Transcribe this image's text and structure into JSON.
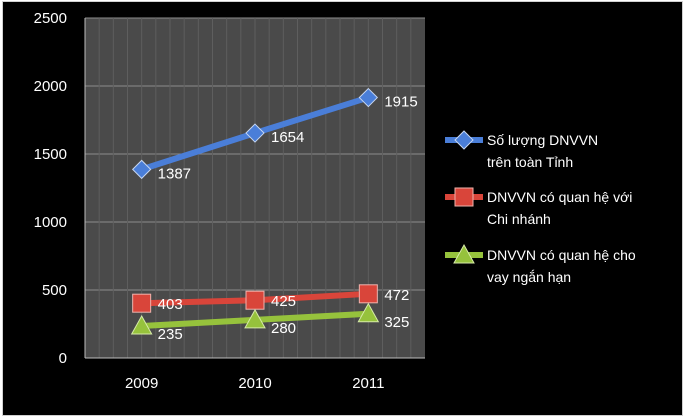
{
  "chart_data": {
    "type": "line",
    "categories": [
      "2009",
      "2010",
      "2011"
    ],
    "series": [
      {
        "name": "Số lượng DNVVN trên toàn Tỉnh",
        "legend_lines": [
          "Số lượng DNVVN",
          "trên toàn Tỉnh"
        ],
        "values": [
          1387,
          1654,
          1915
        ],
        "labels": [
          "1387",
          "1654",
          "1915"
        ],
        "color": "#4a7ed8",
        "marker": "diamond"
      },
      {
        "name": "DNVVN có quan hệ với Chi nhánh",
        "legend_lines": [
          "DNVVN có quan hệ với",
          "Chi nhánh"
        ],
        "values": [
          403,
          425,
          472
        ],
        "labels": [
          "403",
          "425",
          "472"
        ],
        "color": "#d9453a",
        "marker": "square"
      },
      {
        "name": "DNVVN có quan hệ cho vay ngắn hạn",
        "legend_lines": [
          "DNVVN có quan hệ cho",
          "vay ngắn hạn"
        ],
        "values": [
          235,
          280,
          325
        ],
        "labels": [
          "235",
          "280",
          "325"
        ],
        "color": "#96c23c",
        "marker": "triangle"
      }
    ],
    "ylim": [
      0,
      2500
    ],
    "yticks": [
      "0",
      "500",
      "1000",
      "1500",
      "2000",
      "2500"
    ],
    "grid": true,
    "plot_background": "#4a4a4a",
    "legend_position": "right",
    "title": "",
    "xlabel": "",
    "ylabel": ""
  }
}
